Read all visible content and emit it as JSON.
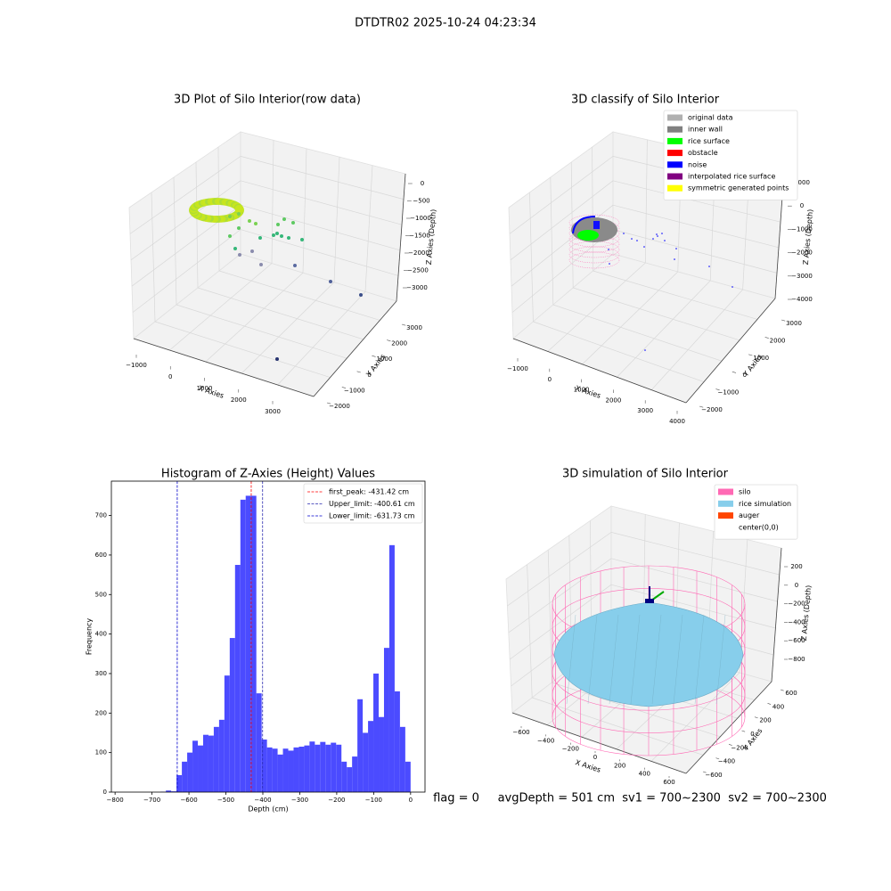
{
  "title": "DTDTR02 2025-10-24 04:23:34",
  "footer": "flag = 0     avgDepth = 501 cm  sv1 = 700~2300  sv2 = 700~2300",
  "chart_data": [
    {
      "type": "scatter3d",
      "title": "3D Plot of Silo Interior(row data)",
      "xlabel": "X Axies",
      "ylabel": "Y Axies",
      "zlabel": "Z Axies (Depth)",
      "xticks": [
        {
          "value": -1000,
          "label": "−1000"
        },
        0,
        1000,
        2000,
        3000
      ],
      "yticks": [
        {
          "value": -2000,
          "label": "−2000"
        },
        {
          "value": -1000,
          "label": "−1000"
        },
        0,
        1000,
        2000,
        3000
      ],
      "zticks": [
        0,
        {
          "value": -500,
          "label": "−500"
        },
        {
          "value": -1000,
          "label": "−1000"
        },
        {
          "value": -1500,
          "label": "−1500"
        },
        {
          "value": -2000,
          "label": "−2000"
        },
        {
          "value": -2500,
          "label": "−2500"
        },
        {
          "value": -3000,
          "label": "−3000"
        }
      ]
    },
    {
      "type": "classify3d",
      "title": "3D classify of Silo Interior",
      "xlabel": "X Axies",
      "ylabel": "Y Axies",
      "zlabel": "Z Axies (Depth)",
      "xticks": [
        {
          "value": -1000,
          "label": "−1000"
        },
        0,
        1000,
        2000,
        3000,
        4000
      ],
      "yticks": [
        {
          "value": -2000,
          "label": "−2000"
        },
        {
          "value": -1000,
          "label": "−1000"
        },
        0,
        1000,
        2000,
        3000
      ],
      "zticks": [
        1000,
        0,
        {
          "value": -1000,
          "label": "−1000"
        },
        {
          "value": -2000,
          "label": "−2000"
        },
        {
          "value": -3000,
          "label": "−3000"
        },
        {
          "value": -4000,
          "label": "−4000"
        }
      ],
      "legend": [
        {
          "name": "original data",
          "color": "#b0b0b0"
        },
        {
          "name": "inner wall",
          "color": "#808080"
        },
        {
          "name": "rice surface",
          "color": "#00ff00"
        },
        {
          "name": "obstacle",
          "color": "#ff0000"
        },
        {
          "name": "noise",
          "color": "#0000ff"
        },
        {
          "name": "interpolated rice surface",
          "color": "#800080"
        },
        {
          "name": "symmetric generated points",
          "color": "#ffff00"
        }
      ]
    },
    {
      "type": "histogram",
      "title": "Histogram of Z-Axies (Height) Values",
      "xlabel": "Depth (cm)",
      "ylabel": "Frequency",
      "color": "#4b4bff",
      "bins": [
        -676.8,
        -662.4,
        -648,
        -633.6,
        -619.2,
        -604.8,
        -590.4,
        -576,
        -561.6,
        -547.2,
        -532.8,
        -518.4,
        -504,
        -489.6,
        -475.2,
        -460.8,
        -446.4,
        -432,
        -417.6,
        -403.2,
        -388.8,
        -374.4,
        -360,
        -345.6,
        -331.2,
        -316.8,
        -302.4,
        -288,
        -273.6,
        -259.2,
        -244.8,
        -230.4,
        -216,
        -201.6,
        -187.2,
        -172.8,
        -158.4,
        -144,
        -129.6,
        -115.2,
        -100.8,
        -86.4,
        -72,
        -57.6,
        -43.2,
        -28.8,
        -14.4,
        0
      ],
      "values": [
        1,
        4,
        2,
        43,
        77,
        100,
        130,
        118,
        145,
        143,
        165,
        183,
        295,
        390,
        575,
        740,
        750,
        750,
        250,
        133,
        113,
        110,
        95,
        110,
        105,
        113,
        115,
        118,
        128,
        120,
        127,
        120,
        125,
        120,
        77,
        63,
        90,
        235,
        150,
        180,
        300,
        190,
        365,
        625,
        255,
        165,
        77
      ],
      "xlim": [
        -810,
        39
      ],
      "ylim": [
        0,
        787
      ],
      "xticks": [
        {
          "value": -800,
          "label": "−800"
        },
        {
          "value": -700,
          "label": "−700"
        },
        {
          "value": -600,
          "label": "−600"
        },
        {
          "value": -500,
          "label": "−500"
        },
        {
          "value": -400,
          "label": "−400"
        },
        {
          "value": -300,
          "label": "−300"
        },
        {
          "value": -200,
          "label": "−200"
        },
        {
          "value": -100,
          "label": "−100"
        },
        0
      ],
      "yticks": [
        0,
        100,
        200,
        300,
        400,
        500,
        600,
        700
      ],
      "lines": [
        {
          "label": "first_peak: -431.42 cm",
          "value": -431.42,
          "color": "#ff0000"
        },
        {
          "label": "Upper_limit: -400.61 cm",
          "value": -400.61,
          "color": "#2a2ab0"
        },
        {
          "label": "Lower_limit: -631.73 cm",
          "value": -631.73,
          "color": "#0000cc"
        }
      ]
    },
    {
      "type": "simulation3d",
      "title": "3D simulation of Silo Interior",
      "xlabel": "X Axies",
      "ylabel": "Y Axies",
      "zlabel": "Z Axies (Depth)",
      "xticks": [
        {
          "value": -600,
          "label": "−600"
        },
        {
          "value": -400,
          "label": "−400"
        },
        {
          "value": -200,
          "label": "−200"
        },
        0,
        200,
        400,
        600
      ],
      "yticks": [
        {
          "value": -600,
          "label": "−600"
        },
        {
          "value": -400,
          "label": "−400"
        },
        {
          "value": -200,
          "label": "−200"
        },
        0,
        200,
        400,
        600
      ],
      "zticks": [
        200,
        0,
        {
          "value": -200,
          "label": "−200"
        },
        {
          "value": -400,
          "label": "−400"
        },
        {
          "value": -600,
          "label": "−600"
        },
        {
          "value": -800,
          "label": "−800"
        }
      ],
      "legend": [
        {
          "name": "silo",
          "color": "#ff69b4"
        },
        {
          "name": "rice simulation",
          "color": "#87ceeb"
        },
        {
          "name": "auger",
          "color": "#ff4500"
        },
        {
          "name": "center(0,0)",
          "color": "#ffffff"
        }
      ]
    }
  ]
}
